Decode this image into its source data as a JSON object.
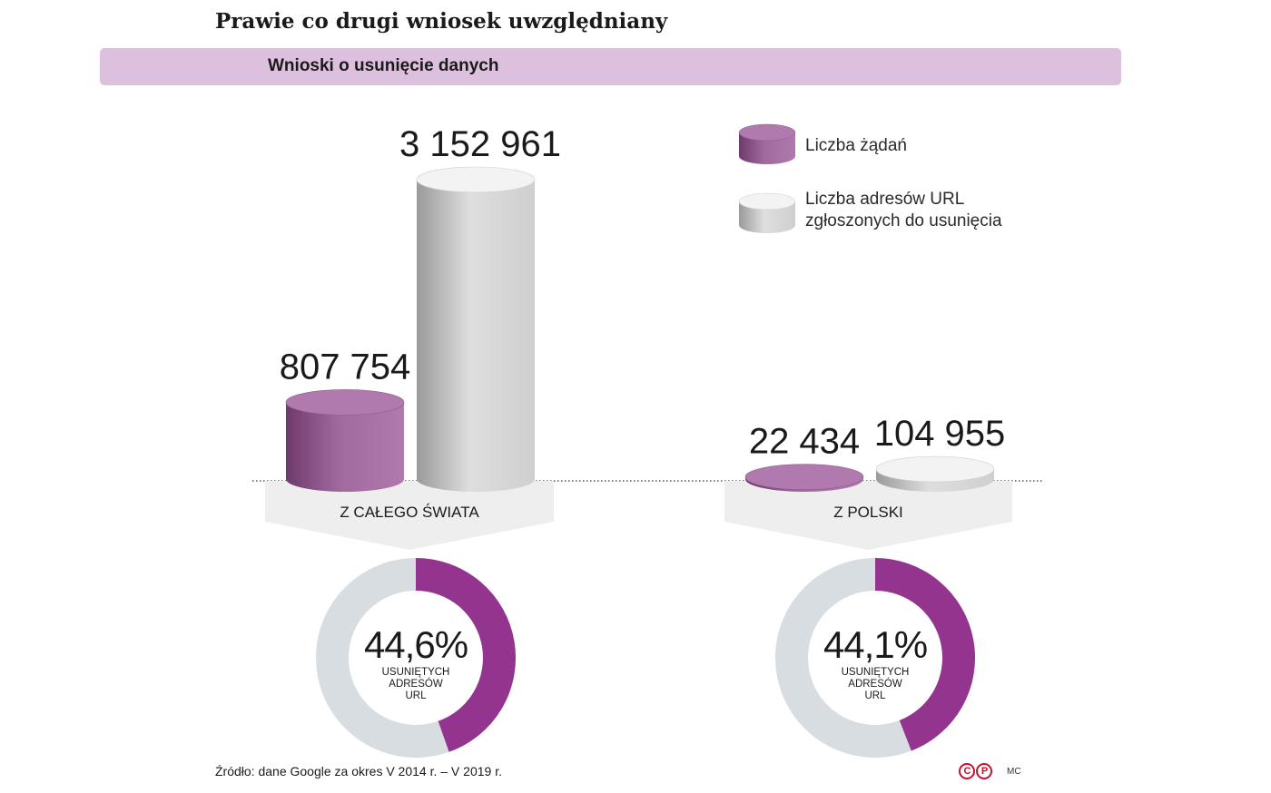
{
  "header": {
    "title": "Prawie co drugi wniosek uwzględniany",
    "subtitle": "Wnioski o usunięcie danych"
  },
  "chart_data": [
    {
      "type": "bar",
      "categories": [
        "Z CAŁEGO ŚWIATA",
        "Z POLSKI"
      ],
      "series": [
        {
          "name": "Liczba żądań",
          "values": [
            807754,
            22434
          ],
          "labels": [
            "807 754",
            "22 434"
          ],
          "color": "#a7649f"
        },
        {
          "name": "Liczba adresów URL zgłoszonych do usunięcia",
          "values": [
            3152961,
            104955
          ],
          "labels": [
            "3 152 961",
            "104 955"
          ],
          "color": "#d9d9d9"
        }
      ],
      "legend_lines": [
        [
          "Liczba żądań"
        ],
        [
          "Liczba adresów URL",
          "zgłoszonych do usunięcia"
        ]
      ],
      "legend_position": "top-right"
    },
    {
      "type": "pie",
      "donuts": [
        {
          "category": "Z CAŁEGO ŚWIATA",
          "value": 44.6,
          "label": "44,6%",
          "caption": [
            "USUNIĘTYCH",
            "ADRESÓW",
            "URL"
          ]
        },
        {
          "category": "Z POLSKI",
          "value": 44.1,
          "label": "44,1%",
          "caption": [
            "USUNIĘTYCH",
            "ADRESÓW",
            "URL"
          ]
        }
      ],
      "colors": {
        "fill": "#93358f",
        "rest": "#d8dde2"
      }
    }
  ],
  "footer": {
    "source": "Źródło: dane Google za okres V 2014 r. – V 2019 r.",
    "author": "MC",
    "logo_c": "C",
    "logo_p": "P"
  }
}
